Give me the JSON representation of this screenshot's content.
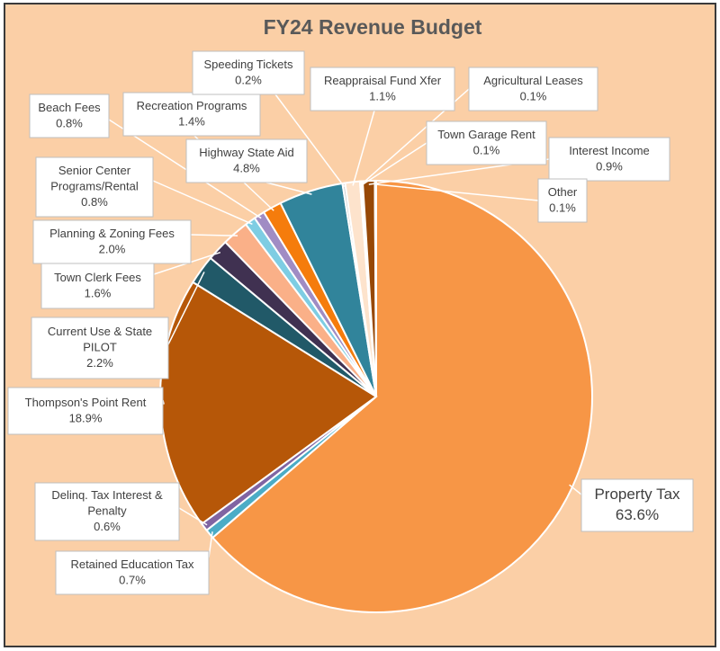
{
  "chart_data": {
    "type": "pie",
    "title": "FY24 Revenue Budget",
    "slices": [
      {
        "label": "Property Tax",
        "value_text": "63.6%",
        "value": 63.6,
        "color": "#f79646"
      },
      {
        "label": "Retained Education Tax",
        "value_text": "0.7%",
        "value": 0.7,
        "color": "#4bacc6"
      },
      {
        "label": "Delinq. Tax Interest & Penalty",
        "value_text": "0.6%",
        "value": 0.6,
        "color": "#8064a2"
      },
      {
        "label": "Thompson's Point Rent",
        "value_text": "18.9%",
        "value": 18.9,
        "color": "#b65708"
      },
      {
        "label": "Current Use & State PILOT",
        "value_text": "2.2%",
        "value": 2.2,
        "color": "#215968"
      },
      {
        "label": "Town Clerk Fees",
        "value_text": "1.6%",
        "value": 1.6,
        "color": "#403151"
      },
      {
        "label": "Planning & Zoning Fees",
        "value_text": "2.0%",
        "value": 2.0,
        "color": "#fab088"
      },
      {
        "label": "Senior Center Programs/Rental",
        "value_text": "0.8%",
        "value": 0.8,
        "color": "#7ecde3"
      },
      {
        "label": "Beach Fees",
        "value_text": "0.8%",
        "value": 0.8,
        "color": "#a08cc4"
      },
      {
        "label": "Recreation Programs",
        "value_text": "1.4%",
        "value": 1.4,
        "color": "#f57c0c"
      },
      {
        "label": "Highway State Aid",
        "value_text": "4.8%",
        "value": 4.8,
        "color": "#31849b"
      },
      {
        "label": "Speeding Tickets",
        "value_text": "0.2%",
        "value": 0.2,
        "color": "#c9c9c9"
      },
      {
        "label": "Reappraisal Fund Xfer",
        "value_text": "1.1%",
        "value": 1.1,
        "color": "#fde3cc"
      },
      {
        "label": "Agricultural Leases",
        "value_text": "0.1%",
        "value": 0.1,
        "color": "#e26b0a"
      },
      {
        "label": "Town Garage Rent",
        "value_text": "0.1%",
        "value": 0.1,
        "color": "#17375e"
      },
      {
        "label": "Interest Income",
        "value_text": "0.9%",
        "value": 0.9,
        "color": "#974806"
      },
      {
        "label": "Other",
        "value_text": "0.1%",
        "value": 0.1,
        "color": "#4f6228"
      }
    ]
  }
}
